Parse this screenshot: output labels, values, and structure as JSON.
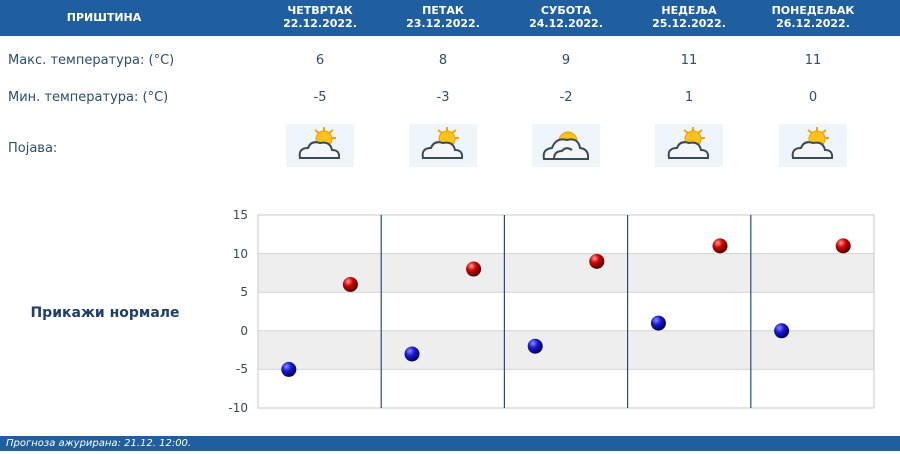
{
  "header": {
    "city": "ПРИШТИНА",
    "days": [
      {
        "name": "ЧЕТВРТАК",
        "date": "22.12.2022."
      },
      {
        "name": "ПЕТАК",
        "date": "23.12.2022."
      },
      {
        "name": "СУБОТА",
        "date": "24.12.2022."
      },
      {
        "name": "НЕДЕЉА",
        "date": "25.12.2022."
      },
      {
        "name": "ПОНЕДЕЉАК",
        "date": "26.12.2022."
      }
    ]
  },
  "rows": {
    "max_label": "Макс. температура: (°C)",
    "min_label": "Мин. температура: (°C)",
    "phenomenon_label": "Појава:",
    "max": [
      "6",
      "8",
      "9",
      "11",
      "11"
    ],
    "min": [
      "-5",
      "-3",
      "-2",
      "1",
      "0"
    ],
    "icons": [
      "partly-cloudy-sun-icon",
      "partly-cloudy-sun-icon",
      "cloudy-sun-icon",
      "partly-cloudy-sun-icon",
      "partly-cloudy-sun-icon"
    ]
  },
  "normals_label": "Прикажи нормале",
  "footer": "Прогноза ажурирана:  21.12. 12:00.",
  "chart_data": {
    "type": "scatter",
    "ylim": [
      -10,
      15
    ],
    "yticks": [
      15,
      10,
      5,
      0,
      -5,
      -10
    ],
    "categories": [
      "22.12.2022.",
      "23.12.2022.",
      "24.12.2022.",
      "25.12.2022.",
      "26.12.2022."
    ],
    "series": [
      {
        "color": "#1010c0",
        "values": [
          -5,
          -3,
          -2,
          1,
          0
        ]
      },
      {
        "color": "#c00000",
        "values": [
          6,
          8,
          9,
          11,
          11
        ]
      }
    ],
    "grid": true
  }
}
